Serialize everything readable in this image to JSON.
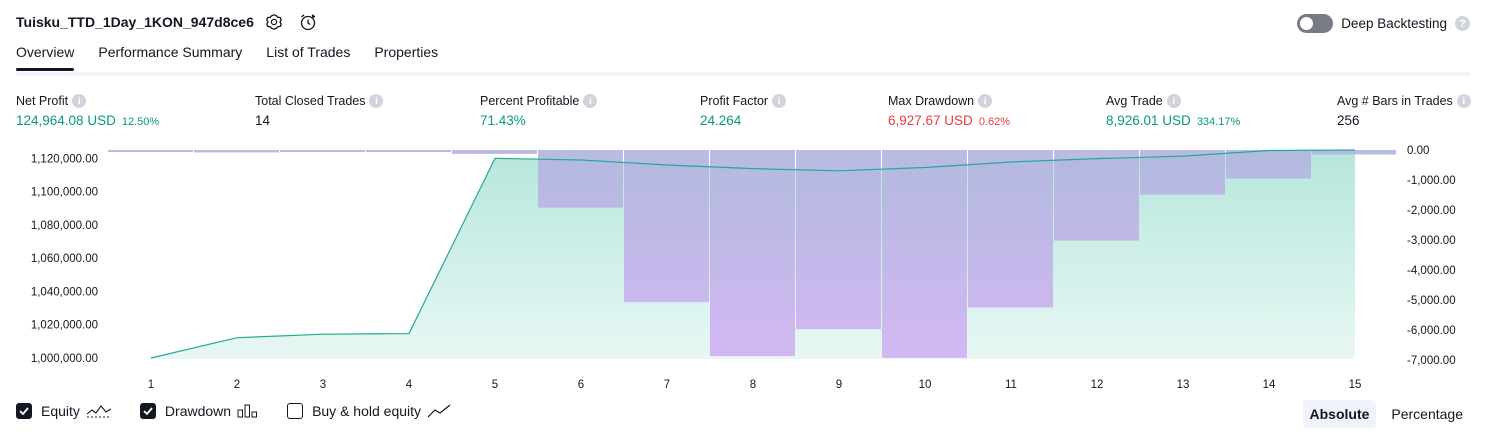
{
  "header": {
    "strategy_name": "Tuisku_TTD_1Day_1KON_947d8ce6",
    "deep_backtesting_label": "Deep Backtesting",
    "deep_backtesting_enabled": false
  },
  "tabs": [
    {
      "label": "Overview",
      "active": true
    },
    {
      "label": "Performance Summary",
      "active": false
    },
    {
      "label": "List of Trades",
      "active": false
    },
    {
      "label": "Properties",
      "active": false
    }
  ],
  "metrics": {
    "net_profit": {
      "label": "Net Profit",
      "value": "124,964.08 USD",
      "pct": "12.50%"
    },
    "total_closed_trades": {
      "label": "Total Closed Trades",
      "value": "14"
    },
    "percent_profitable": {
      "label": "Percent Profitable",
      "value": "71.43%"
    },
    "profit_factor": {
      "label": "Profit Factor",
      "value": "24.264"
    },
    "max_drawdown": {
      "label": "Max Drawdown",
      "value": "6,927.67 USD",
      "pct": "0.62%"
    },
    "avg_trade": {
      "label": "Avg Trade",
      "value": "8,926.01 USD",
      "pct": "334.17%"
    },
    "avg_bars": {
      "label": "Avg # Bars in Trades",
      "value": "256"
    }
  },
  "chart_data": {
    "type": "area",
    "x": [
      1,
      2,
      3,
      4,
      5,
      6,
      7,
      8,
      9,
      10,
      11,
      12,
      13,
      14,
      15
    ],
    "series": [
      {
        "name": "Equity",
        "values": [
          1000000,
          1012200,
          1014300,
          1014700,
          1120000,
          1119000,
          1116000,
          1113800,
          1112500,
          1114500,
          1117800,
          1119800,
          1121300,
          1124700,
          1125000
        ]
      },
      {
        "name": "Drawdown",
        "values": [
          -20,
          -80,
          -20,
          -20,
          -130,
          -1920,
          -5070,
          -6870,
          -5970,
          -6930,
          -5250,
          -3020,
          -1490,
          -950,
          -150
        ]
      }
    ],
    "left_axis": {
      "ticks": [
        "1,000,000.00",
        "1,020,000.00",
        "1,040,000.00",
        "1,060,000.00",
        "1,080,000.00",
        "1,100,000.00",
        "1,120,000.00"
      ],
      "ylim": [
        1000000,
        1125000
      ]
    },
    "right_axis": {
      "ticks": [
        "0.00",
        "-1,000.00",
        "-2,000.00",
        "-3,000.00",
        "-4,000.00",
        "-5,000.00",
        "-6,000.00",
        "-7,000.00"
      ],
      "ylim": [
        -7000,
        0
      ]
    },
    "x_ticks": [
      "1",
      "2",
      "3",
      "4",
      "5",
      "6",
      "7",
      "8",
      "9",
      "10",
      "11",
      "12",
      "13",
      "14",
      "15"
    ],
    "colors": {
      "equity_line": "#22ab94",
      "equity_fill": "#b2e5da",
      "drawdown_top": "#b2b5e0",
      "drawdown_bottom": "#d1b3f2"
    },
    "grid": false
  },
  "legend": [
    {
      "label": "Equity",
      "checked": true,
      "icon": "equity-wave-icon"
    },
    {
      "label": "Drawdown",
      "checked": true,
      "icon": "drawdown-bars-icon"
    },
    {
      "label": "Buy & hold equity",
      "checked": false,
      "icon": "buy-hold-line-icon"
    }
  ],
  "scale_mode": {
    "options": [
      "Absolute",
      "Percentage"
    ],
    "selected": "Absolute"
  }
}
